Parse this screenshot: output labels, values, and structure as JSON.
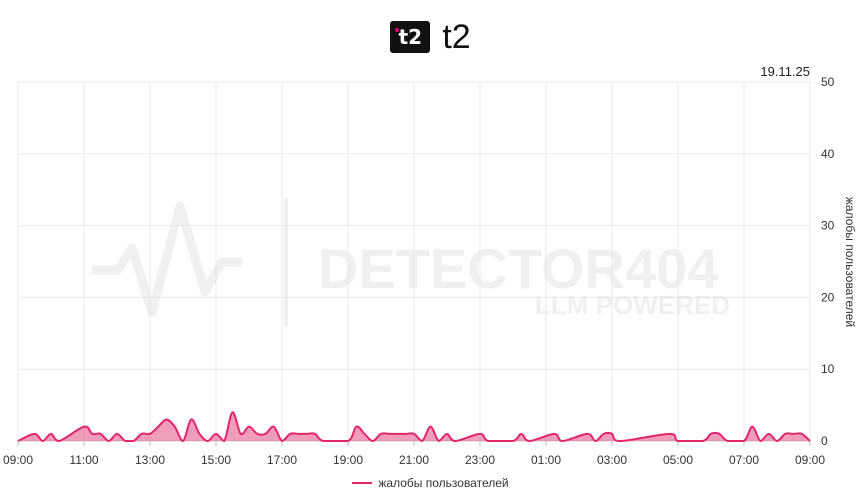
{
  "header": {
    "logo_text": "t2",
    "brand": "t2"
  },
  "date_label": "19.11.25",
  "watermark": {
    "line1": "DETECTOR404",
    "line2": "LLM POWERED"
  },
  "colors": {
    "series": "#e3266c",
    "fill": "#e8739c",
    "grid": "#e9e9e9"
  },
  "chart_data": {
    "type": "area",
    "title": "",
    "xlabel": "",
    "ylabel": "жалобы пользователей",
    "ylim": [
      0,
      50
    ],
    "yticks": [
      "0",
      "10",
      "20",
      "30",
      "40",
      "50"
    ],
    "xticks": [
      "09:00",
      "11:00",
      "13:00",
      "15:00",
      "17:00",
      "19:00",
      "21:00",
      "23:00",
      "01:00",
      "03:00",
      "05:00",
      "07:00",
      "09:00"
    ],
    "legend_position": "bottom-center",
    "grid": true,
    "series": [
      {
        "name": "жалобы пользователей",
        "points": [
          [
            "09:00",
            0
          ],
          [
            "09:30",
            1
          ],
          [
            "09:45",
            0
          ],
          [
            "10:00",
            1
          ],
          [
            "10:15",
            0
          ],
          [
            "11:00",
            2
          ],
          [
            "11:15",
            1
          ],
          [
            "11:30",
            1
          ],
          [
            "11:45",
            0
          ],
          [
            "12:00",
            1
          ],
          [
            "12:15",
            0
          ],
          [
            "12:30",
            0
          ],
          [
            "12:45",
            1
          ],
          [
            "13:00",
            1
          ],
          [
            "13:15",
            2
          ],
          [
            "13:30",
            3
          ],
          [
            "13:45",
            2
          ],
          [
            "14:00",
            0
          ],
          [
            "14:15",
            3
          ],
          [
            "14:30",
            1
          ],
          [
            "14:45",
            0
          ],
          [
            "15:00",
            1
          ],
          [
            "15:15",
            0
          ],
          [
            "15:30",
            4
          ],
          [
            "15:45",
            1
          ],
          [
            "16:00",
            2
          ],
          [
            "16:15",
            1
          ],
          [
            "16:30",
            1
          ],
          [
            "16:45",
            2
          ],
          [
            "17:00",
            0
          ],
          [
            "17:15",
            1
          ],
          [
            "17:30",
            1
          ],
          [
            "17:45",
            1
          ],
          [
            "18:00",
            1
          ],
          [
            "18:15",
            0
          ],
          [
            "19:00",
            0
          ],
          [
            "19:15",
            2
          ],
          [
            "19:30",
            1
          ],
          [
            "19:45",
            0
          ],
          [
            "20:00",
            1
          ],
          [
            "20:15",
            1
          ],
          [
            "20:30",
            1
          ],
          [
            "20:45",
            1
          ],
          [
            "21:00",
            1
          ],
          [
            "21:15",
            0
          ],
          [
            "21:30",
            2
          ],
          [
            "21:45",
            0
          ],
          [
            "22:00",
            1
          ],
          [
            "22:15",
            0
          ],
          [
            "23:00",
            1
          ],
          [
            "23:15",
            0
          ],
          [
            "00:00",
            0
          ],
          [
            "00:15",
            1
          ],
          [
            "00:30",
            0
          ],
          [
            "01:15",
            1
          ],
          [
            "01:30",
            0
          ],
          [
            "02:15",
            1
          ],
          [
            "02:30",
            0
          ],
          [
            "02:45",
            1
          ],
          [
            "03:00",
            1
          ],
          [
            "03:15",
            0
          ],
          [
            "04:45",
            1
          ],
          [
            "05:00",
            0
          ],
          [
            "05:45",
            0
          ],
          [
            "06:00",
            1
          ],
          [
            "06:15",
            1
          ],
          [
            "06:30",
            0
          ],
          [
            "07:00",
            0
          ],
          [
            "07:15",
            2
          ],
          [
            "07:30",
            0
          ],
          [
            "07:45",
            1
          ],
          [
            "08:00",
            0
          ],
          [
            "08:15",
            1
          ],
          [
            "08:30",
            1
          ],
          [
            "08:45",
            1
          ],
          [
            "09:00",
            0
          ]
        ]
      }
    ]
  }
}
